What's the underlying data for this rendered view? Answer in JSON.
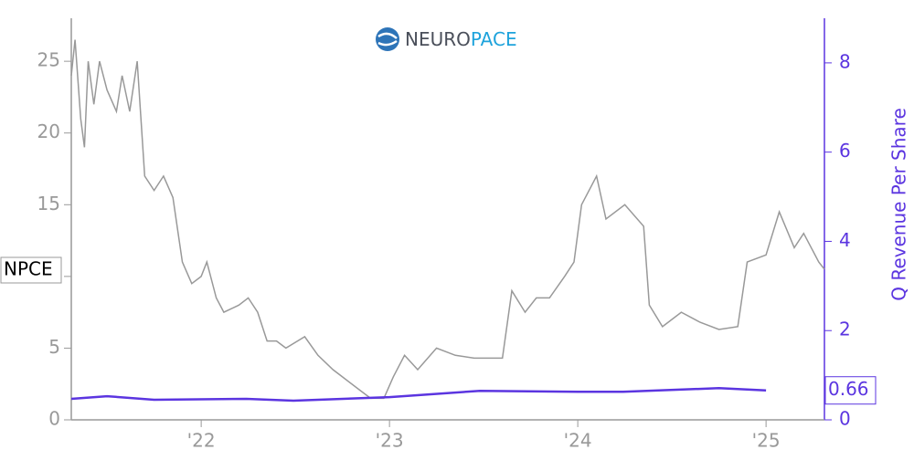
{
  "logo": {
    "part1": "NEURO",
    "part2": "PACE"
  },
  "chart_data": {
    "type": "line",
    "xlim": [
      2021.31,
      2025.31
    ],
    "xticks": [
      {
        "value": 2022,
        "label": "'22"
      },
      {
        "value": 2023,
        "label": "'23"
      },
      {
        "value": 2024,
        "label": "'24"
      },
      {
        "value": 2025,
        "label": "'25"
      }
    ],
    "ylim": [
      0,
      28
    ],
    "yticks": [
      0,
      5,
      10,
      15,
      20,
      25
    ],
    "y2lim": [
      0,
      9
    ],
    "y2ticks": [
      0,
      2,
      4,
      6,
      8
    ],
    "y2label": "Q Revenue Per Share",
    "series": [
      {
        "name": "NPCE",
        "color": "#999999",
        "axis": "y",
        "x": [
          2021.31,
          2021.33,
          2021.36,
          2021.38,
          2021.4,
          2021.43,
          2021.46,
          2021.5,
          2021.55,
          2021.58,
          2021.62,
          2021.66,
          2021.7,
          2021.75,
          2021.8,
          2021.85,
          2021.9,
          2021.95,
          2022.0,
          2022.03,
          2022.08,
          2022.12,
          2022.2,
          2022.25,
          2022.3,
          2022.35,
          2022.4,
          2022.45,
          2022.55,
          2022.62,
          2022.7,
          2022.75,
          2022.85,
          2022.9,
          2022.97,
          2023.02,
          2023.08,
          2023.15,
          2023.25,
          2023.35,
          2023.45,
          2023.6,
          2023.65,
          2023.72,
          2023.78,
          2023.85,
          2023.93,
          2023.98,
          2024.02,
          2024.1,
          2024.15,
          2024.25,
          2024.35,
          2024.38,
          2024.45,
          2024.55,
          2024.65,
          2024.75,
          2024.85,
          2024.9,
          2025.0,
          2025.07,
          2025.15,
          2025.2,
          2025.28,
          2025.31
        ],
        "values": [
          24,
          26.5,
          21,
          19,
          25,
          22,
          25,
          23,
          21.5,
          24,
          21.5,
          25,
          17,
          16,
          17,
          15.5,
          11,
          9.5,
          10,
          11,
          8.5,
          7.5,
          8,
          8.5,
          7.5,
          5.5,
          5.5,
          5,
          5.8,
          4.5,
          3.5,
          3,
          2,
          1.5,
          1.5,
          3,
          4.5,
          3.5,
          5,
          4.5,
          4.3,
          4.3,
          9,
          7.5,
          8.5,
          8.5,
          10,
          11,
          15,
          17,
          14,
          15,
          13.5,
          8,
          6.5,
          7.5,
          6.8,
          6.3,
          6.5,
          11,
          11.5,
          14.5,
          12,
          13,
          11,
          10.5
        ]
      },
      {
        "color": "#5b35e0",
        "axis": "y2",
        "x": [
          2021.31,
          2021.5,
          2021.75,
          2022.24,
          2022.49,
          2023.0,
          2023.48,
          2024.0,
          2024.24,
          2024.75,
          2025.0
        ],
        "values": [
          0.47,
          0.53,
          0.45,
          0.47,
          0.43,
          0.51,
          0.65,
          0.63,
          0.63,
          0.71,
          0.66
        ],
        "value_labels": [
          null,
          null,
          null,
          null,
          null,
          null,
          null,
          null,
          null,
          null,
          "0.66"
        ]
      }
    ]
  }
}
